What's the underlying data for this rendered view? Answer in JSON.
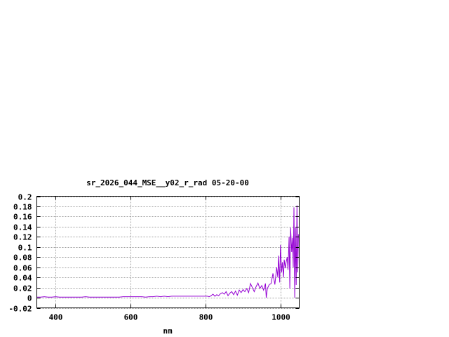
{
  "chart_data": {
    "type": "line",
    "title": "sr_2026_044_MSE__y02_r_rad 05-20-00",
    "xlabel": "nm",
    "ylabel": "",
    "xlim": [
      350,
      1050
    ],
    "ylim": [
      -0.02,
      0.2
    ],
    "xticks": [
      400,
      600,
      800,
      1000
    ],
    "yticks": [
      -0.02,
      0,
      0.02,
      0.04,
      0.06,
      0.08,
      0.1,
      0.12,
      0.14,
      0.16,
      0.18,
      0.2
    ],
    "ytick_labels": [
      "-0.02",
      "0",
      "0.02",
      "0.04",
      "0.06",
      "0.08",
      "0.1",
      "0.12",
      "0.14",
      "0.16",
      "0.18",
      "0.2"
    ],
    "grid": true,
    "legend": "none",
    "series": [
      {
        "color": "#9400d3",
        "x": [
          350,
          360,
          370,
          380,
          390,
          400,
          410,
          420,
          430,
          440,
          450,
          460,
          470,
          480,
          490,
          500,
          510,
          520,
          530,
          540,
          550,
          560,
          570,
          580,
          590,
          600,
          610,
          620,
          630,
          640,
          650,
          660,
          670,
          680,
          690,
          700,
          710,
          720,
          730,
          740,
          750,
          760,
          770,
          780,
          790,
          800,
          805,
          810,
          815,
          820,
          825,
          830,
          835,
          840,
          845,
          850,
          855,
          860,
          865,
          870,
          875,
          880,
          885,
          890,
          895,
          900,
          905,
          910,
          915,
          920,
          925,
          930,
          935,
          940,
          945,
          950,
          955,
          960,
          962,
          965,
          970,
          975,
          980,
          985,
          990,
          993,
          995,
          998,
          1000,
          1003,
          1005,
          1008,
          1010,
          1013,
          1015,
          1018,
          1020,
          1023,
          1025,
          1027,
          1030,
          1032,
          1034,
          1036,
          1038,
          1040,
          1042,
          1044,
          1046,
          1048
        ],
        "y": [
          0.001,
          0.001,
          0.002,
          0.001,
          0.001,
          0.002,
          0.001,
          0.001,
          0.001,
          0.001,
          0.001,
          0.001,
          0.001,
          0.002,
          0.001,
          0.001,
          0.001,
          0.001,
          0.001,
          0.001,
          0.001,
          0.001,
          0.001,
          0.002,
          0.002,
          0.002,
          0.002,
          0.002,
          0.002,
          0.001,
          0.002,
          0.002,
          0.003,
          0.002,
          0.003,
          0.002,
          0.003,
          0.003,
          0.003,
          0.003,
          0.003,
          0.003,
          0.003,
          0.003,
          0.003,
          0.003,
          0.003,
          0.002,
          0.004,
          0.007,
          0.003,
          0.006,
          0.004,
          0.008,
          0.01,
          0.007,
          0.012,
          0.004,
          0.009,
          0.012,
          0.006,
          0.013,
          0.005,
          0.015,
          0.01,
          0.016,
          0.012,
          0.018,
          0.01,
          0.028,
          0.02,
          0.012,
          0.022,
          0.029,
          0.018,
          0.024,
          0.015,
          0.028,
          0.0,
          0.018,
          0.026,
          0.028,
          0.048,
          0.026,
          0.06,
          0.04,
          0.083,
          0.03,
          0.104,
          0.05,
          0.07,
          0.04,
          0.075,
          0.058,
          0.07,
          0.08,
          0.055,
          0.12,
          0.018,
          0.138,
          0.09,
          0.118,
          0.06,
          0.178,
          0.0,
          0.138,
          0.025,
          0.182,
          0.05,
          0.125
        ]
      }
    ]
  }
}
